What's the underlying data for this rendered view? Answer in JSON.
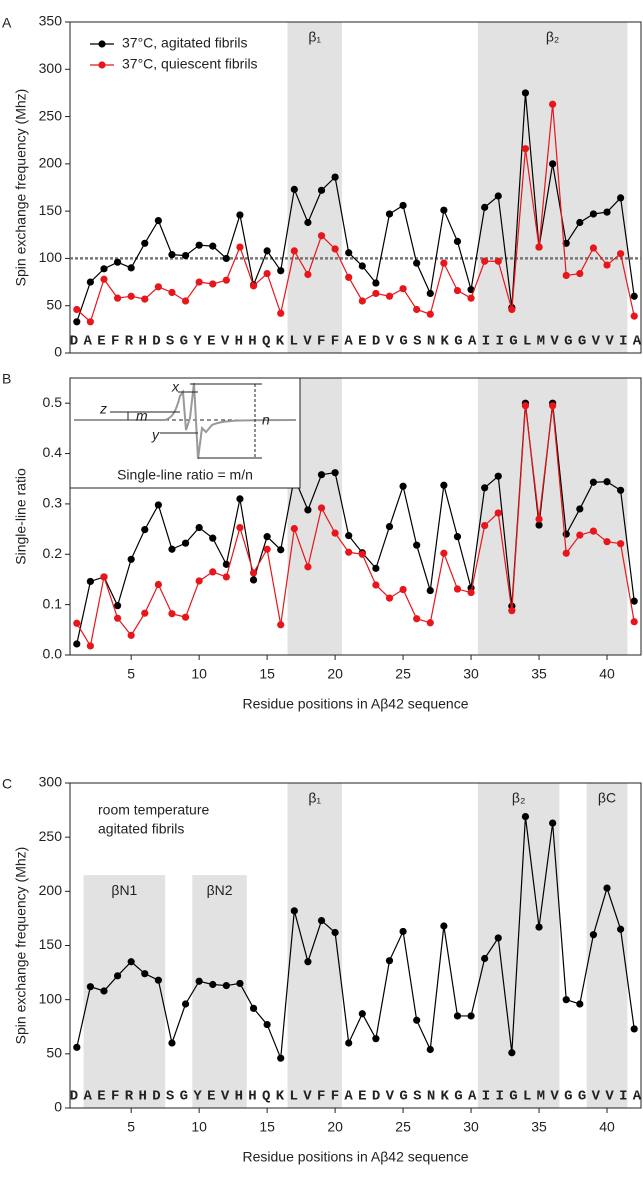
{
  "chart_data": [
    {
      "type": "line",
      "panel": "A",
      "ylabel": "Spin exchange frequency (Mhz)",
      "x": [
        1,
        2,
        3,
        4,
        5,
        6,
        7,
        8,
        9,
        10,
        11,
        12,
        13,
        14,
        15,
        16,
        17,
        18,
        19,
        20,
        21,
        22,
        23,
        24,
        25,
        26,
        27,
        28,
        29,
        30,
        31,
        32,
        33,
        34,
        35,
        36,
        37,
        38,
        39,
        40,
        41,
        42
      ],
      "xlim": [
        0.5,
        42.5
      ],
      "ylim": [
        0,
        350
      ],
      "yticks": [
        0,
        50,
        100,
        150,
        200,
        250,
        300,
        350
      ],
      "sequence": "DAEFRHDSGYEVHHQKLVFFAEDVGSNKGAIIGLMVGGVVIA",
      "hline": 100,
      "legend": "upper left",
      "regions": [
        {
          "label": "β₁",
          "start": 16.5,
          "end": 20.5
        },
        {
          "label": "β₂",
          "start": 30.5,
          "end": 41.5
        }
      ],
      "series": [
        {
          "name": "37°C, agitated fibrils",
          "color": "#000000",
          "values": [
            33,
            75,
            89,
            96,
            90,
            116,
            140,
            104,
            103,
            114,
            113,
            100,
            146,
            72,
            108,
            87,
            173,
            138,
            172,
            186,
            106,
            92,
            74,
            147,
            156,
            95,
            63,
            151,
            118,
            67,
            154,
            166,
            48,
            275,
            112,
            200,
            116,
            138,
            147,
            149,
            164,
            60
          ]
        },
        {
          "name": "37°C, quiescent fibrils",
          "color": "#e8151b",
          "values": [
            46,
            33,
            78,
            58,
            60,
            57,
            70,
            64,
            55,
            75,
            73,
            77,
            112,
            71,
            84,
            42,
            108,
            83,
            124,
            110,
            80,
            55,
            63,
            60,
            68,
            46,
            41,
            95,
            66,
            58,
            97,
            97,
            46,
            216,
            112,
            263,
            82,
            84,
            111,
            93,
            105,
            39
          ]
        }
      ]
    },
    {
      "type": "line",
      "panel": "B",
      "ylabel": "Single-line ratio",
      "xlabel": "Residue positions in Aβ42 sequence",
      "x": [
        1,
        2,
        3,
        4,
        5,
        6,
        7,
        8,
        9,
        10,
        11,
        12,
        13,
        14,
        15,
        16,
        17,
        18,
        19,
        20,
        21,
        22,
        23,
        24,
        25,
        26,
        27,
        28,
        29,
        30,
        31,
        32,
        33,
        34,
        35,
        36,
        37,
        38,
        39,
        40,
        41,
        42
      ],
      "xlim": [
        0.5,
        42.5
      ],
      "xticks": [
        5,
        10,
        15,
        20,
        25,
        30,
        35,
        40
      ],
      "ylim": [
        0,
        0.55
      ],
      "yticks": [
        {
          "value": 0,
          "label": "0.0"
        },
        0.1,
        0.2,
        0.3,
        0.4,
        0.5
      ],
      "regions": [
        {
          "start": 16.5,
          "end": 20.5
        },
        {
          "start": 30.5,
          "end": 41.5
        }
      ],
      "inset": {
        "x": "x",
        "y": "y",
        "z": "z",
        "m": "m",
        "n": "n",
        "caption": "Single-line ratio = m/n"
      },
      "series": [
        {
          "color": "#000000",
          "values": [
            0.022,
            0.146,
            0.155,
            0.098,
            0.19,
            0.249,
            0.298,
            0.21,
            0.222,
            0.253,
            0.232,
            0.18,
            0.31,
            0.149,
            0.235,
            0.209,
            0.352,
            0.288,
            0.358,
            0.362,
            0.237,
            0.203,
            0.172,
            0.255,
            0.335,
            0.218,
            0.128,
            0.337,
            0.235,
            0.133,
            0.332,
            0.355,
            0.097,
            0.5,
            0.258,
            0.5,
            0.24,
            0.29,
            0.343,
            0.344,
            0.327,
            0.107
          ]
        },
        {
          "color": "#e8151b",
          "values": [
            0.063,
            0.018,
            0.155,
            0.073,
            0.039,
            0.083,
            0.14,
            0.082,
            0.075,
            0.147,
            0.165,
            0.155,
            0.253,
            0.163,
            0.21,
            0.06,
            0.251,
            0.175,
            0.292,
            0.242,
            0.204,
            0.2,
            0.139,
            0.113,
            0.13,
            0.072,
            0.064,
            0.202,
            0.131,
            0.124,
            0.257,
            0.282,
            0.088,
            0.495,
            0.27,
            0.495,
            0.202,
            0.238,
            0.246,
            0.225,
            0.221,
            0.066
          ]
        }
      ]
    },
    {
      "type": "line",
      "panel": "C",
      "ylabel": "Spin exchange frequency (Mhz)",
      "xlabel": "Residue positions in Aβ42 sequence",
      "annotation": [
        "room temperature",
        "agitated fibrils"
      ],
      "x": [
        1,
        2,
        3,
        4,
        5,
        6,
        7,
        8,
        9,
        10,
        11,
        12,
        13,
        14,
        15,
        16,
        17,
        18,
        19,
        20,
        21,
        22,
        23,
        24,
        25,
        26,
        27,
        28,
        29,
        30,
        31,
        32,
        33,
        34,
        35,
        36,
        37,
        38,
        39,
        40,
        41,
        42
      ],
      "xlim": [
        0.5,
        42.5
      ],
      "xticks": [
        5,
        10,
        15,
        20,
        25,
        30,
        35,
        40
      ],
      "ylim": [
        0,
        300
      ],
      "yticks": [
        0,
        50,
        100,
        150,
        200,
        250,
        300
      ],
      "sequence": "DAEFRHDSGYEVHHQKLVFFAEDVGSNKGAIIGLMVGGVVIA",
      "regions": [
        {
          "label": "βN1",
          "start": 1.5,
          "end": 7.5,
          "y_top": 215
        },
        {
          "label": "βN2",
          "start": 9.5,
          "end": 13.5,
          "y_top": 215
        },
        {
          "label": "β₁",
          "start": 16.5,
          "end": 20.5
        },
        {
          "label": "β₂",
          "start": 30.5,
          "end": 36.5
        },
        {
          "label": "βC",
          "start": 38.5,
          "end": 41.5
        }
      ],
      "series": [
        {
          "color": "#000000",
          "values": [
            56,
            112,
            108,
            122,
            135,
            124,
            118,
            60,
            96,
            117,
            114,
            113,
            115,
            92,
            77,
            46,
            182,
            135,
            173,
            162,
            60,
            87,
            64,
            136,
            163,
            81,
            54,
            168,
            85,
            85,
            138,
            157,
            51,
            269,
            167,
            263,
            100,
            96,
            160,
            203,
            165,
            73
          ]
        }
      ]
    }
  ]
}
